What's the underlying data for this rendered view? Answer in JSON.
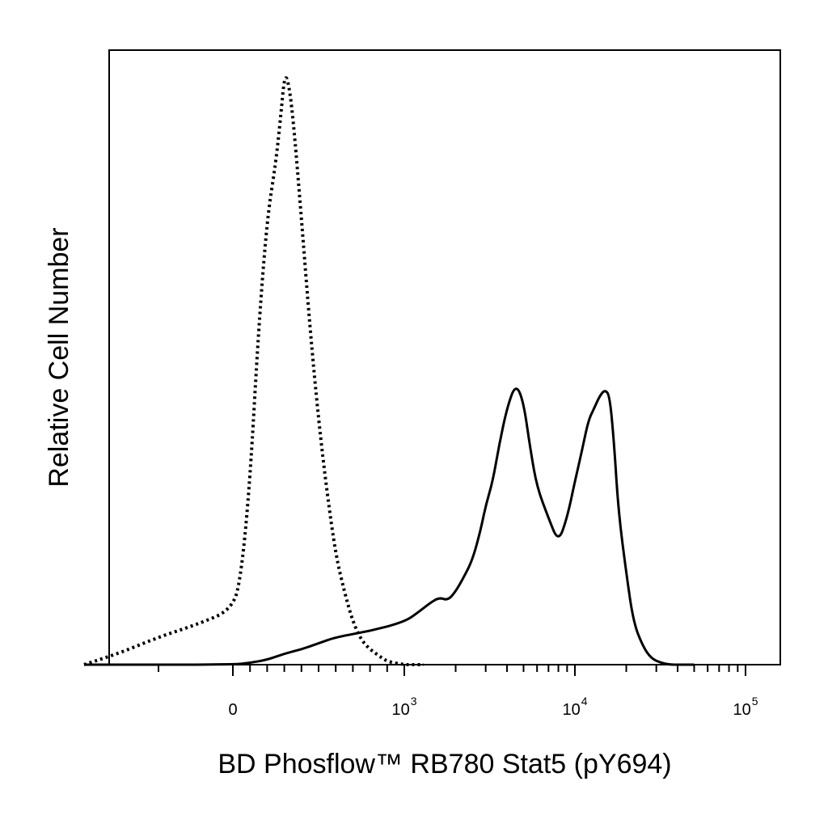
{
  "chart_data": {
    "type": "line",
    "title": "",
    "xlabel": "BD Phosflow™ RB780  Stat5 (pY694)",
    "ylabel": "Relative Cell Number",
    "x_scale": "biexponential",
    "xlim": [
      -300,
      200000
    ],
    "ylim": [
      0,
      100
    ],
    "grid": false,
    "x_ticks": [
      {
        "base": "0",
        "exp": "",
        "value": 0
      },
      {
        "base": "10",
        "exp": "3",
        "value": 1000
      },
      {
        "base": "10",
        "exp": "4",
        "value": 10000
      },
      {
        "base": "10",
        "exp": "5",
        "value": 100000
      }
    ],
    "series": [
      {
        "style": "dotted",
        "color": "#000000",
        "x": [
          -200,
          -150,
          -100,
          -50,
          0,
          50,
          100,
          150,
          200,
          250,
          280,
          300,
          320,
          350,
          400,
          450,
          500,
          550,
          600,
          650,
          700,
          750,
          800,
          850,
          900,
          1000,
          1100,
          1300
        ],
        "y": [
          0,
          2,
          4.5,
          6.5,
          9,
          15,
          30,
          55,
          73,
          82,
          90,
          96,
          96,
          90,
          73,
          55,
          40,
          28,
          18,
          12,
          7,
          4,
          2.5,
          1.5,
          0.5,
          0,
          0,
          0
        ]
      },
      {
        "style": "solid",
        "color": "#000000",
        "x": [
          -200,
          0,
          100,
          200,
          300,
          400,
          500,
          600,
          800,
          1000,
          1200,
          1400,
          1600,
          1800,
          2000,
          2200,
          2500,
          2800,
          3000,
          3300,
          3600,
          4000,
          4500,
          5000,
          5500,
          6000,
          7000,
          8000,
          9000,
          10000,
          11000,
          12000,
          13000,
          14000,
          15000,
          16000,
          17000,
          18000,
          20000,
          22000,
          25000,
          28000,
          32000,
          36000,
          40000,
          50000
        ],
        "y": [
          0,
          0,
          0.3,
          0.8,
          1.8,
          2.5,
          3.5,
          4.5,
          5.5,
          7,
          8.5,
          10,
          11,
          10.5,
          12,
          14,
          17,
          22,
          26,
          30,
          36,
          42,
          46,
          43,
          35,
          29,
          24,
          20,
          24,
          30,
          35,
          40,
          42,
          44,
          45,
          44,
          36,
          25,
          15,
          7,
          3,
          1,
          0.3,
          0,
          0,
          0
        ]
      }
    ]
  }
}
